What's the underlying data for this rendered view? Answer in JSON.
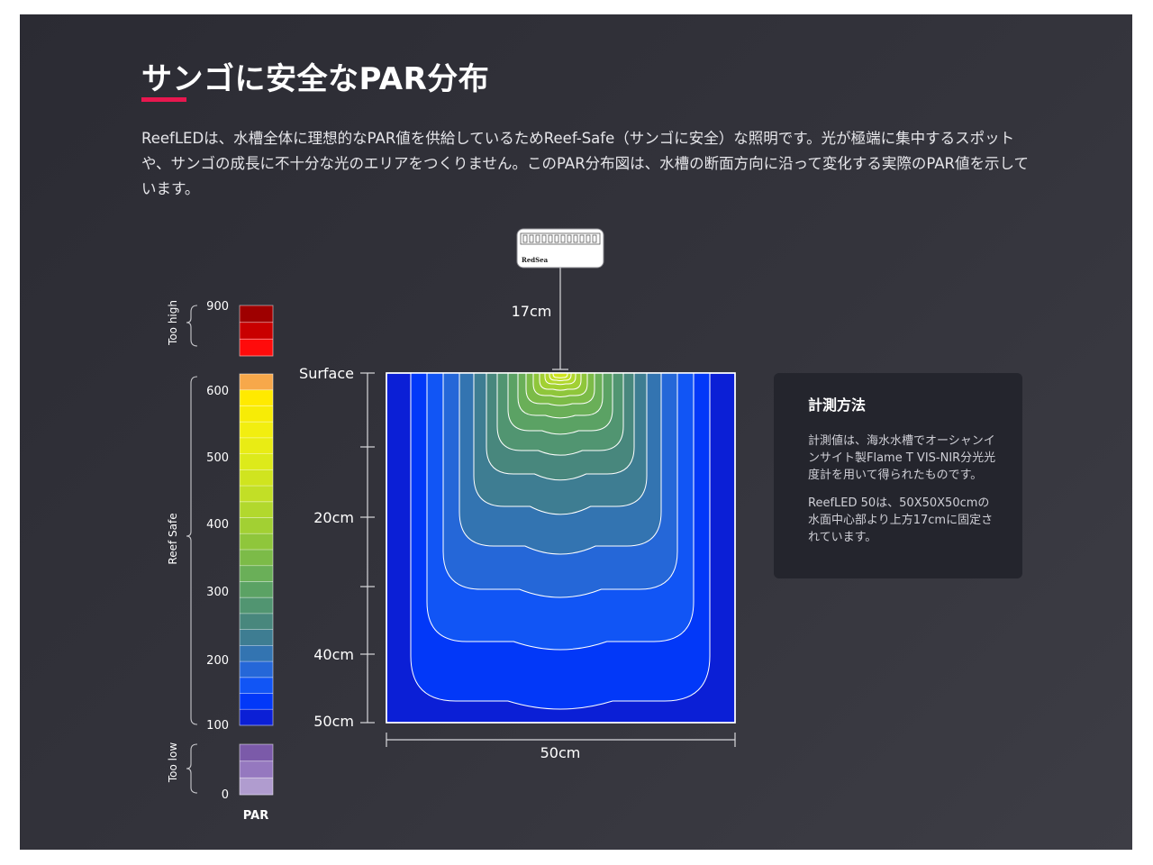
{
  "title": "サンゴに安全なPAR分布",
  "description": "ReefLEDは、水槽全体に理想的なPAR値を供給しているためReef-Safe（サンゴに安全）な照明です。光が極端に集中するスポットや、サンゴの成長に不十分な光のエリアをつくりません。このPAR分布図は、水槽の断面方向に沿って変化する実際のPAR値を示しています。",
  "colors": {
    "accent": "#e8174f",
    "tank_background": "#0b1fd6"
  },
  "light_fixture": {
    "icon": "reefled-fixture-icon",
    "brand": "RedSea"
  },
  "legend": {
    "axis_label": "PAR",
    "ticks": [
      "900",
      "600",
      "500",
      "400",
      "300",
      "200",
      "100",
      "0"
    ],
    "groups": {
      "too_high": "Too high",
      "reef_safe": "Reef Safe",
      "too_low": "Too low"
    },
    "too_high_colors": [
      "#9e0000",
      "#c90000",
      "#ff0b0b"
    ],
    "reef_safe_colors": [
      "#f7a84a",
      "#ffea00",
      "#f7ec06",
      "#f2ee10",
      "#e9ec14",
      "#ddea1a",
      "#d0e41f",
      "#c2df26",
      "#b2d82d",
      "#a2d033",
      "#8fc63b",
      "#7cbb48",
      "#6aaf58",
      "#5ba264",
      "#519571",
      "#48877d",
      "#3e7d92",
      "#3374b1",
      "#2567d8",
      "#1155f5",
      "#0238f8",
      "#0b1fd6"
    ],
    "too_low_colors": [
      "#7b5aa9",
      "#9578bf",
      "#b09ccf"
    ]
  },
  "chart_data": {
    "type": "contour",
    "title": "",
    "depth_labels": [
      "Surface",
      "20cm",
      "40cm",
      "50cm"
    ],
    "width_label": "50cm",
    "light_height_label": "17cm",
    "tank_size_cm": [
      50,
      50
    ]
  },
  "info_card": {
    "title": "計測方法",
    "paragraph1": "計測値は、海水水槽でオーシャンインサイト製Flame T VIS-NIR分光光度計を用いて得られたものです。",
    "paragraph2": "ReefLED 50は、50X50X50cmの水面中心部より上方17cmに固定されています。"
  }
}
